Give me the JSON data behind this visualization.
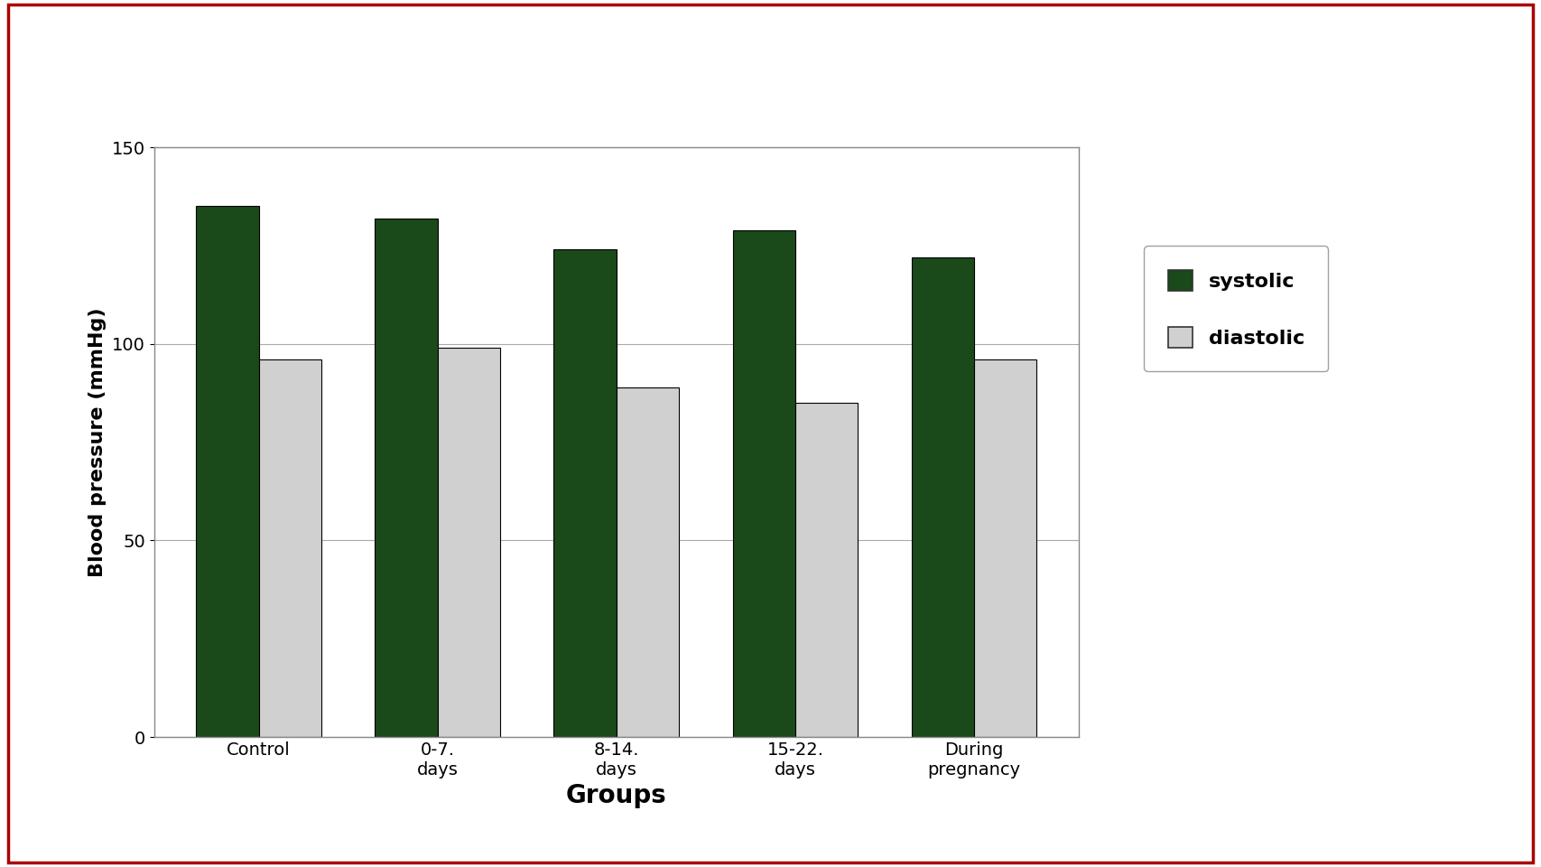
{
  "categories": [
    "Control",
    "0-7.\ndays",
    "8-14.\ndays",
    "15-22.\ndays",
    "During\npregnancy"
  ],
  "systolic": [
    135,
    132,
    124,
    129,
    122
  ],
  "diastolic": [
    96,
    99,
    89,
    85,
    96
  ],
  "systolic_color": "#1a4a1a",
  "diastolic_color": "#d0d0d0",
  "ylabel": "Blood pressure (mmHg)",
  "xlabel": "Groups",
  "ylim": [
    0,
    150
  ],
  "yticks": [
    0,
    50,
    100,
    150
  ],
  "bar_width": 0.35,
  "legend_labels": [
    "systolic",
    "diastolic"
  ],
  "background_color": "#ffffff",
  "plot_bg_color": "#ffffff",
  "border_color": "#aa0000",
  "xlabel_fontsize": 20,
  "ylabel_fontsize": 16,
  "tick_fontsize": 14,
  "legend_fontsize": 16
}
